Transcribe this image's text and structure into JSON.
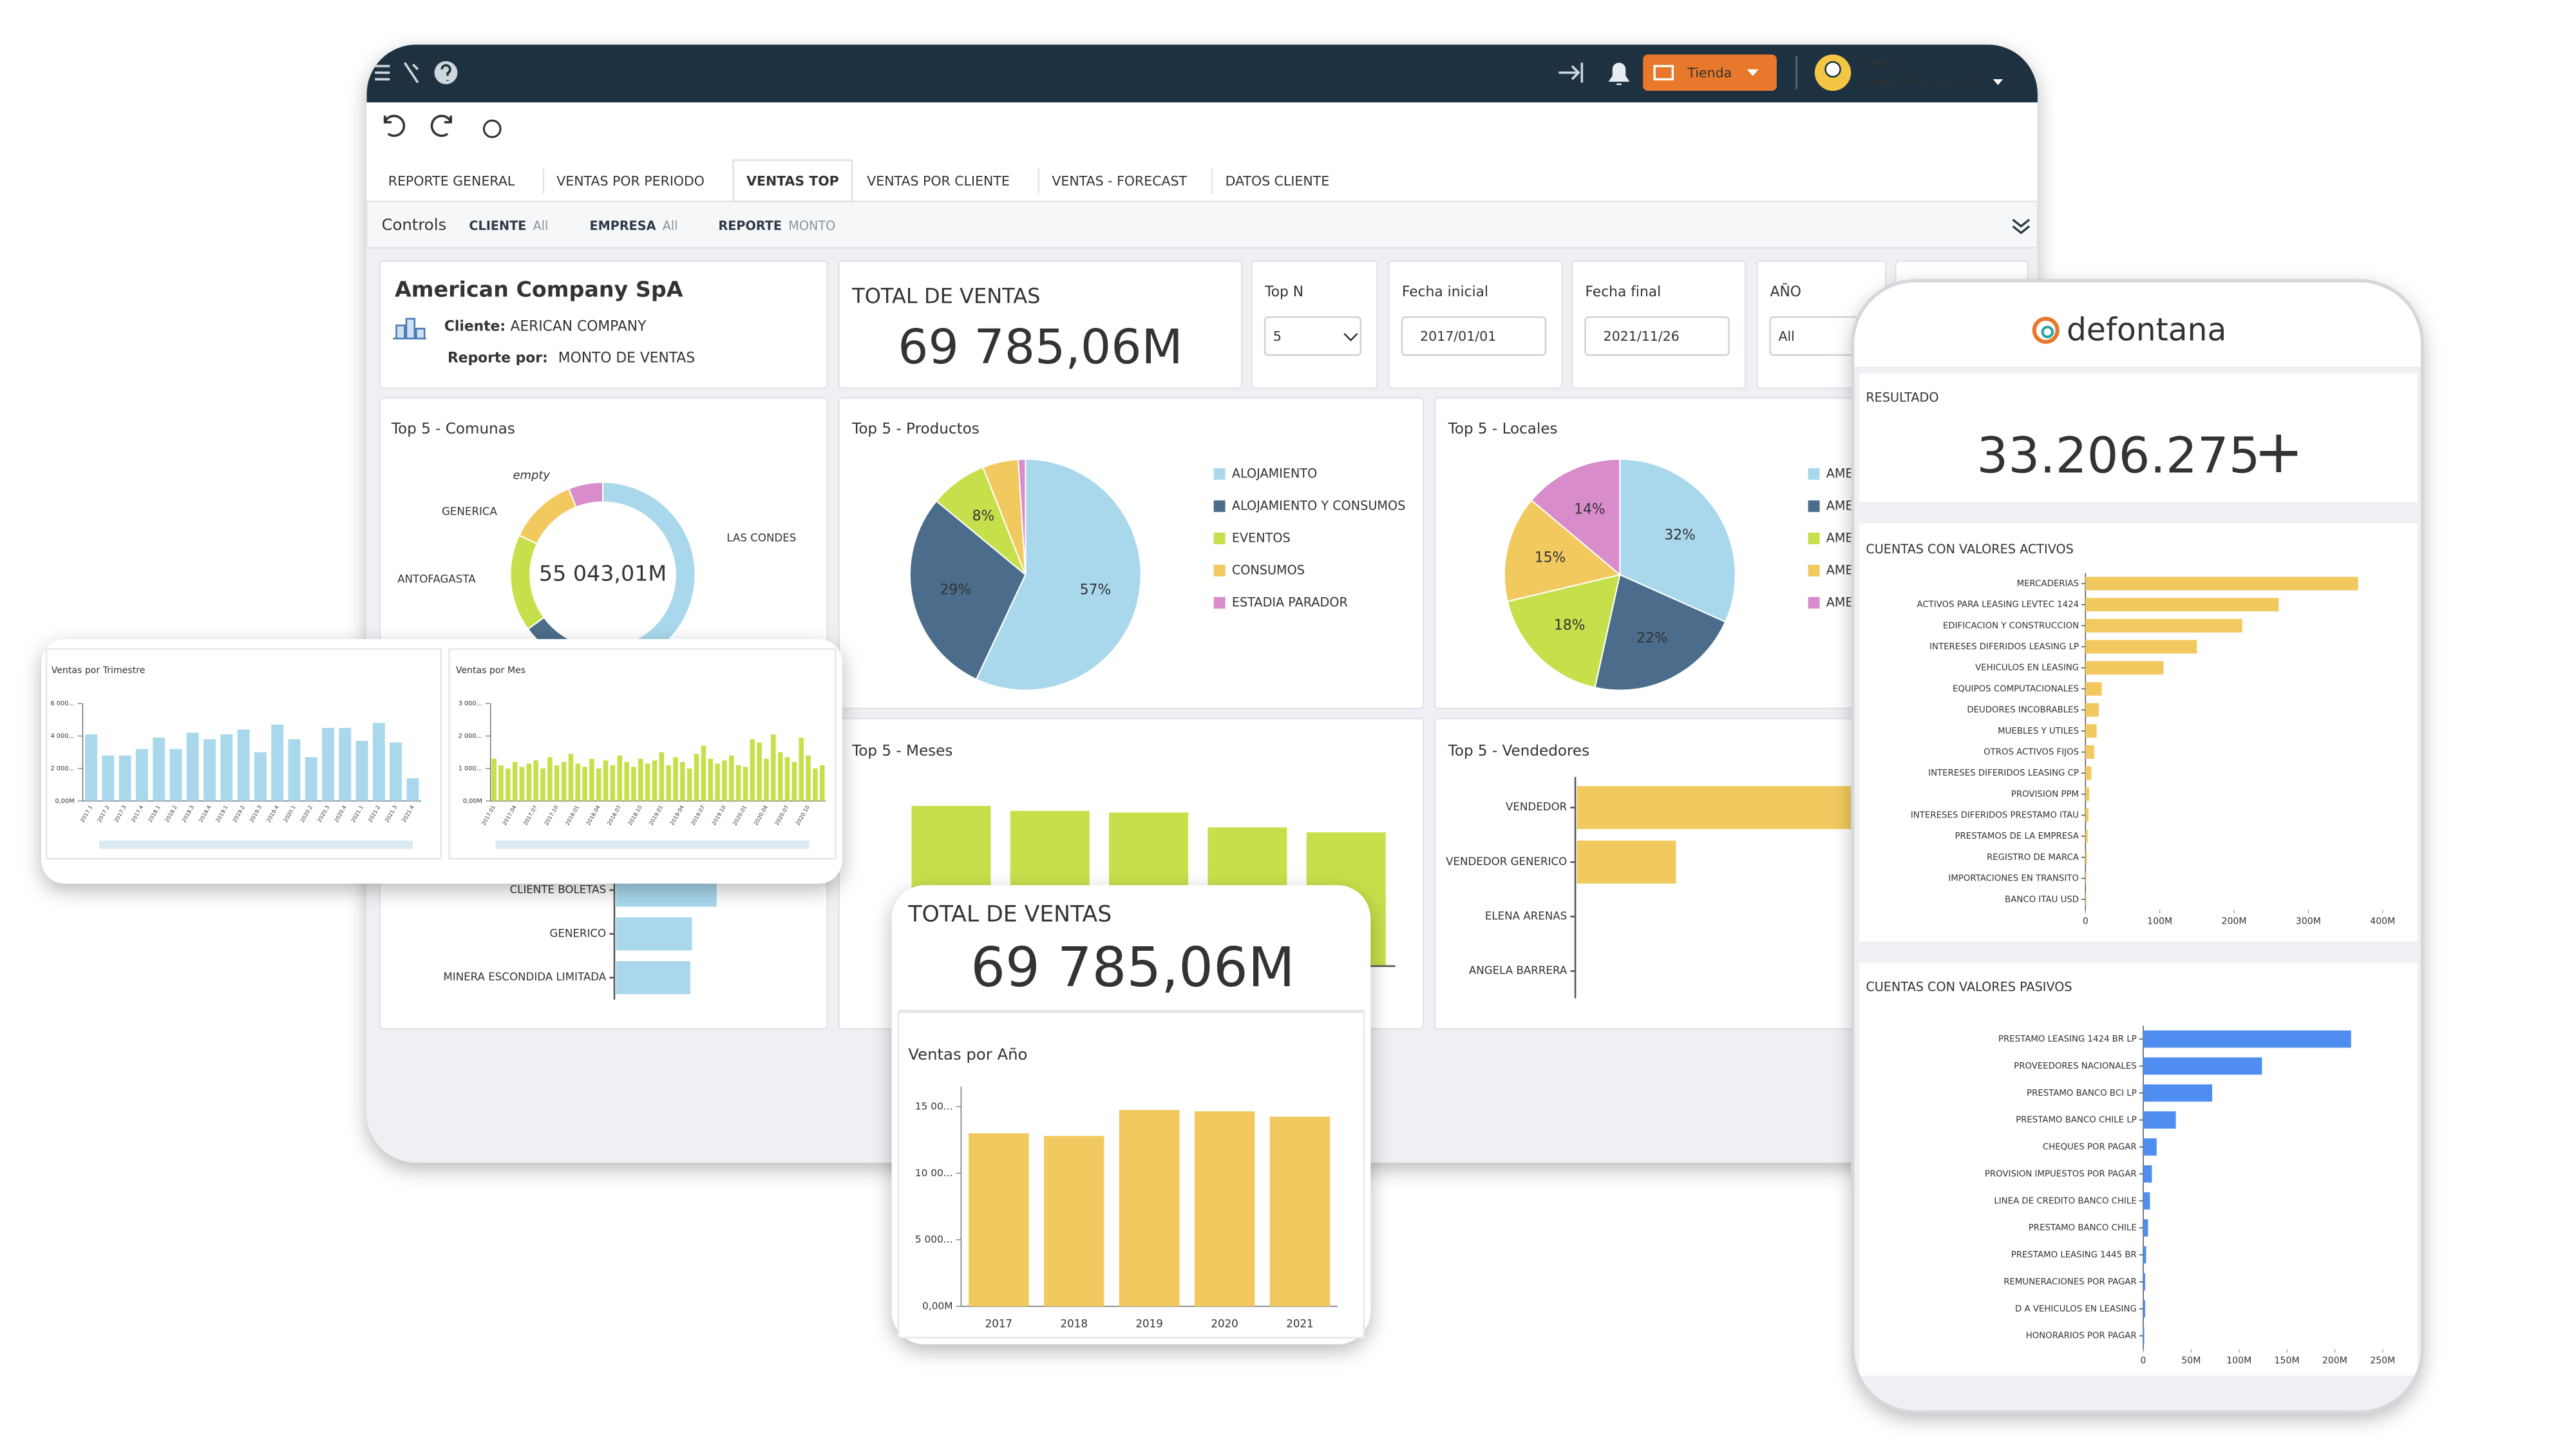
{
  "topbar": {
    "store_button": "Tienda",
    "user_name": "Test",
    "user_level": "Nivel Principiante"
  },
  "tabs": [
    "REPORTE GENERAL",
    "VENTAS POR PERIODO",
    "VENTAS TOP",
    "VENTAS POR CLIENTE",
    "VENTAS - FORECAST",
    "DATOS CLIENTE"
  ],
  "controls": {
    "label": "Controls",
    "filters": [
      {
        "name": "CLIENTE",
        "value": "All"
      },
      {
        "name": "EMPRESA",
        "value": "All"
      },
      {
        "name": "REPORTE",
        "value": "MONTO"
      }
    ]
  },
  "company": {
    "name": "American Company SpA",
    "client_label": "Cliente:",
    "client": "AERICAN COMPANY",
    "report_label": "Reporte por:",
    "report": "MONTO DE VENTAS"
  },
  "total_sales": {
    "title": "TOTAL DE VENTAS",
    "value": "69 785,06M"
  },
  "selectors": [
    {
      "label": "Top N",
      "value": "5"
    },
    {
      "label": "Fecha inicial",
      "value": "2017/01/01"
    },
    {
      "label": "Fecha final",
      "value": "2021/11/26"
    },
    {
      "label": "AÑO",
      "value": "All"
    }
  ],
  "charts": {
    "comunas": {
      "type": "donut",
      "title": "Top 5 - Comunas",
      "center_label": "55 043,01M",
      "categories": [
        "LAS CONDES",
        null,
        "ANTOFAGASTA",
        "GENERICA",
        "empty"
      ],
      "values": [
        55,
        10,
        17,
        12,
        6
      ],
      "colors": [
        "#a9d8ec",
        "#4b6d8b",
        "#c6e04b",
        "#f1c95f",
        "#d98ccb"
      ]
    },
    "productos": {
      "type": "pie",
      "title": "Top 5 - Productos",
      "categories": [
        "ALOJAMIENTO",
        "ALOJAMIENTO Y CONSUMOS",
        "EVENTOS",
        "CONSUMOS",
        "ESTADIA PARADOR"
      ],
      "values": [
        57,
        29,
        8,
        5,
        1
      ],
      "value_labels": [
        "57%",
        "29%",
        "8%",
        null,
        null
      ],
      "colors": [
        "#a9d8ec",
        "#4b6d8b",
        "#c6e04b",
        "#f1c95f",
        "#d98ccb"
      ]
    },
    "locales": {
      "type": "pie",
      "title": "Top 5 - Locales",
      "categories": [
        "AME",
        "AME",
        "AME",
        "AME",
        "AME"
      ],
      "values": [
        32,
        22,
        18,
        15,
        14
      ],
      "value_labels": [
        "32%",
        "22%",
        "18%",
        "15%",
        "14%"
      ],
      "colors": [
        "#a9d8ec",
        "#4b6d8b",
        "#c6e04b",
        "#f1c95f",
        "#d98ccb"
      ]
    },
    "meses": {
      "type": "bar",
      "title": "Top 5 - Meses",
      "values": [
        97,
        94,
        93,
        84,
        81
      ],
      "color": "#c6e04b"
    },
    "vendedores": {
      "type": "hbar",
      "title": "Top 5 - Vendedores",
      "categories": [
        "VENDEDOR",
        "VENDEDOR GENERICO",
        "ELENA ARENAS",
        "ANGELA BARRERA"
      ],
      "values": [
        180,
        60,
        0,
        0
      ],
      "color": "#f1c95f"
    },
    "clientes": {
      "type": "hbar",
      "categories": [
        "CLIENTE BOLETAS",
        "GENERICO",
        "MINERA ESCONDIDA LIMITADA"
      ],
      "values": [
        61,
        46,
        45
      ],
      "color": "#a9d8ec"
    }
  },
  "overlay": {
    "quarterly": {
      "type": "bar",
      "title": "Ventas por Trimestre",
      "color": "#a9d8ec",
      "categories": [
        "2017.1",
        "2017.2",
        "2017.3",
        "2017.4",
        "2018.1",
        "2018.2",
        "2018.3",
        "2018.4",
        "2019.1",
        "2019.2",
        "2019.3",
        "2019.4",
        "2020.1",
        "2020.2",
        "2020.3",
        "2020.4",
        "2021.1",
        "2021.2",
        "2021.3",
        "2021.4"
      ],
      "values": [
        4100,
        2800,
        2800,
        3200,
        3900,
        3200,
        4200,
        3800,
        4100,
        4400,
        3000,
        4700,
        3800,
        2700,
        4500,
        4500,
        3700,
        4800,
        3600,
        1400
      ],
      "ylim": [
        0,
        6000
      ],
      "yticks": [
        {
          "value": 0,
          "label": "0,00M"
        },
        {
          "value": 2000,
          "label": "2 000..."
        },
        {
          "value": 4000,
          "label": "4 000..."
        },
        {
          "value": 6000,
          "label": "6 000..."
        }
      ]
    },
    "monthly": {
      "type": "bar",
      "title": "Ventas por Mes",
      "color": "#c6e04b",
      "categories": [
        "2017.01",
        null,
        null,
        "2017.04",
        null,
        null,
        "2017.07",
        null,
        null,
        "2017.10",
        null,
        null,
        "2018.01",
        null,
        null,
        "2018.04",
        null,
        null,
        "2018.07",
        null,
        null,
        "2018.10",
        null,
        null,
        "2019.01",
        null,
        null,
        "2019.04",
        null,
        null,
        "2019.07",
        null,
        null,
        "2019.10",
        null,
        null,
        "2020.01",
        null,
        null,
        "2020.04",
        null,
        null,
        "2020.07",
        null,
        null,
        "2020.10",
        null,
        null
      ],
      "values": [
        1300,
        1100,
        1000,
        1200,
        1050,
        1150,
        1250,
        1000,
        1350,
        1100,
        1200,
        1450,
        1150,
        1050,
        1300,
        1000,
        1250,
        1100,
        1400,
        1200,
        1050,
        1300,
        1150,
        1250,
        1500,
        1100,
        1350,
        1200,
        1000,
        1450,
        1700,
        1300,
        1150,
        1250,
        1400,
        1100,
        1050,
        1900,
        1800,
        1300,
        2050,
        1500,
        1350,
        1200,
        1950,
        1400,
        1000,
        1100
      ],
      "ylim": [
        0,
        3000
      ],
      "yticks": [
        {
          "value": 0,
          "label": "0,00M"
        },
        {
          "value": 1000,
          "label": "1 000..."
        },
        {
          "value": 2000,
          "label": "2 000..."
        },
        {
          "value": 3000,
          "label": "3 000..."
        }
      ]
    }
  },
  "front_card": {
    "title": "TOTAL DE VENTAS",
    "value": "69 785,06M",
    "chart": {
      "type": "bar",
      "title": "Ventas por Año",
      "color": "#f1c95f",
      "categories": [
        "2017",
        "2018",
        "2019",
        "2020",
        "2021"
      ],
      "values": [
        13000,
        12800,
        14750,
        14650,
        14250
      ],
      "ylim": [
        0,
        16500
      ],
      "yticks": [
        {
          "value": 0,
          "label": "0,00M"
        },
        {
          "value": 5000,
          "label": "5 000..."
        },
        {
          "value": 10000,
          "label": "10 00..."
        },
        {
          "value": 15000,
          "label": "15 00..."
        }
      ]
    }
  },
  "phone": {
    "logo": "defontana",
    "result_label": "RESULTADO",
    "result_value": "33.206.275",
    "result_sign": "+",
    "assets": {
      "type": "hbar",
      "title": "CUENTAS CON VALORES ACTIVOS",
      "color": "#f1c95f",
      "categories": [
        "MERCADERIAS",
        "ACTIVOS PARA LEASING LEVTEC 1424",
        "EDIFICACION Y CONSTRUCCION",
        "INTERESES DIFERIDOS LEASING LP",
        "VEHICULOS EN LEASING",
        "EQUIPOS COMPUTACIONALES",
        "DEUDORES INCOBRABLES",
        "MUEBLES Y UTILES",
        "OTROS ACTIVOS FIJOS",
        "INTERESES DIFERIDOS LEASING CP",
        "PROVISION PPM",
        "INTERESES DIFERIDOS PRESTAMO ITAU",
        "PRESTAMOS DE LA EMPRESA",
        "REGISTRO DE MARCA",
        "IMPORTACIONES EN TRANSITO",
        "BANCO ITAU USD"
      ],
      "values": [
        367,
        260,
        211,
        150,
        105,
        22,
        18,
        15,
        12,
        8,
        5,
        4,
        3,
        2,
        1,
        1
      ],
      "xlim": [
        0,
        400
      ],
      "xticks": [
        0,
        {
          "value": 100,
          "label": "100M"
        },
        {
          "value": 200,
          "label": "200M"
        },
        {
          "value": 300,
          "label": "300M"
        },
        {
          "value": 400,
          "label": "400M"
        }
      ]
    },
    "liabilities": {
      "type": "hbar",
      "title": "CUENTAS CON VALORES PASIVOS",
      "color": "#4f8ef0",
      "categories": [
        "PRESTAMO LEASING 1424 BR LP",
        "PROVEEDORES NACIONALES",
        "PRESTAMO BANCO BCI LP",
        "PRESTAMO BANCO CHILE LP",
        "CHEQUES POR PAGAR",
        "PROVISION IMPUESTOS POR PAGAR",
        "LINEA DE CREDITO BANCO CHILE",
        "PRESTAMO BANCO CHILE",
        "PRESTAMO LEASING 1445 BR",
        "REMUNERACIONES POR PAGAR",
        "D A VEHICULOS EN LEASING",
        "HONORARIOS POR PAGAR"
      ],
      "values": [
        217,
        124,
        72,
        34,
        14,
        9,
        7,
        5,
        3,
        2,
        2,
        1
      ],
      "xlim": [
        0,
        250
      ],
      "xticks": [
        0,
        {
          "value": 50,
          "label": "50M"
        },
        {
          "value": 100,
          "label": "100M"
        },
        {
          "value": 150,
          "label": "150M"
        },
        {
          "value": 200,
          "label": "200M"
        },
        {
          "value": 250,
          "label": "250M"
        }
      ]
    }
  }
}
